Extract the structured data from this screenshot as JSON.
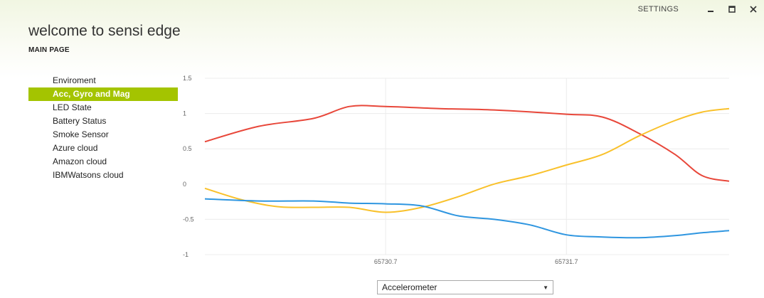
{
  "window": {
    "settings_label": "SETTINGS",
    "minimize_icon": "minimize-icon",
    "maximize_icon": "maximize-icon",
    "close_icon": "close-icon"
  },
  "header": {
    "title": "welcome to sensi edge",
    "subtitle": "MAIN PAGE"
  },
  "sidebar": {
    "items": [
      {
        "label": "Enviroment",
        "active": false
      },
      {
        "label": "Acc, Gyro and Mag",
        "active": true
      },
      {
        "label": "LED State",
        "active": false
      },
      {
        "label": "Battery Status",
        "active": false
      },
      {
        "label": "Smoke Sensor",
        "active": false
      },
      {
        "label": "Azure cloud",
        "active": false
      },
      {
        "label": "Amazon cloud",
        "active": false
      },
      {
        "label": "IBMWatsons cloud",
        "active": false
      }
    ]
  },
  "colors": {
    "accent": "#a4c400",
    "series_red": "#e8473a",
    "series_yellow": "#f9c12b",
    "series_blue": "#2f96e0"
  },
  "chart_data": {
    "type": "line",
    "ylim": [
      -1,
      1.5
    ],
    "yticks": [
      "1.5",
      "1",
      "0.5",
      "0",
      "-0.5",
      "-1"
    ],
    "xlim": [
      65729.7,
      65732.6
    ],
    "xticks": [
      "65730.7",
      "65731.7"
    ],
    "grid": true,
    "series": [
      {
        "color": "#e8473a",
        "x": [
          65729.7,
          65730.0,
          65730.3,
          65730.5,
          65730.7,
          65731.0,
          65731.3,
          65731.7,
          65731.9,
          65732.1,
          65732.3,
          65732.45,
          65732.6
        ],
        "y": [
          0.6,
          0.82,
          0.93,
          1.1,
          1.1,
          1.07,
          1.05,
          0.99,
          0.95,
          0.72,
          0.42,
          0.12,
          0.04
        ]
      },
      {
        "color": "#f9c12b",
        "x": [
          65729.7,
          65729.9,
          65730.1,
          65730.3,
          65730.5,
          65730.7,
          65730.9,
          65731.1,
          65731.3,
          65731.5,
          65731.7,
          65731.9,
          65732.1,
          65732.3,
          65732.45,
          65732.6
        ],
        "y": [
          -0.06,
          -0.22,
          -0.32,
          -0.33,
          -0.33,
          -0.4,
          -0.33,
          -0.18,
          0.0,
          0.12,
          0.27,
          0.42,
          0.68,
          0.9,
          1.02,
          1.07
        ]
      },
      {
        "color": "#2f96e0",
        "x": [
          65729.7,
          65730.0,
          65730.3,
          65730.5,
          65730.7,
          65730.9,
          65731.1,
          65731.3,
          65731.5,
          65731.7,
          65731.9,
          65732.1,
          65732.3,
          65732.45,
          65732.6
        ],
        "y": [
          -0.21,
          -0.24,
          -0.24,
          -0.27,
          -0.28,
          -0.31,
          -0.45,
          -0.5,
          -0.58,
          -0.72,
          -0.75,
          -0.76,
          -0.73,
          -0.69,
          -0.66
        ]
      }
    ]
  },
  "selector": {
    "value": "Accelerometer"
  }
}
